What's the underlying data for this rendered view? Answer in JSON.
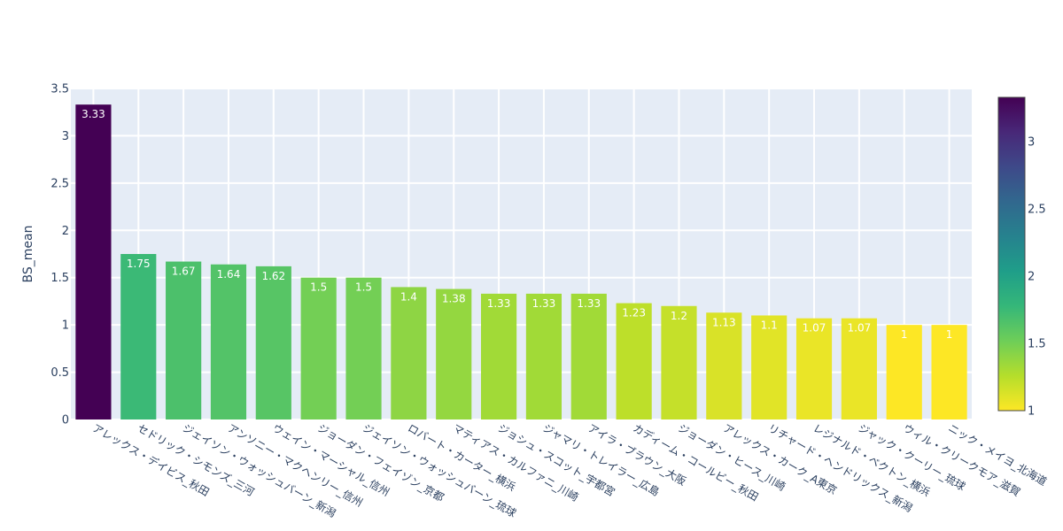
{
  "chart_data": {
    "type": "bar",
    "title": "",
    "xlabel": "",
    "ylabel": "BS_mean",
    "ylim": [
      0,
      3.5
    ],
    "yticks": [
      "0",
      "0.5",
      "1",
      "1.5",
      "2",
      "2.5",
      "3",
      "3.5"
    ],
    "colorscale": "Viridis (reversed)",
    "colorbar": {
      "range": [
        1,
        3.33
      ],
      "ticks": [
        "1",
        "1.5",
        "2",
        "2.5",
        "3"
      ]
    },
    "categories": [
      "アレックス・デイビス_秋田",
      "セドリック・シモンズ_三河",
      "ジェイソン・ウォッシュバーン_新潟",
      "アンソニー・マクヘンリー_信州",
      "ウェイン・マーシャル_信州",
      "ジョーダン・フェイゾン_京都",
      "ジェイソン・ウォッシュバーン_琉球",
      "ロバート・カーター_横浜",
      "マティアス・カルファニ_川崎",
      "ジョシュ・スコット_宇都宮",
      "ジャマリ・トレイラー_広島",
      "アイラ・ブラウン_大阪",
      "カディーム・コールビー_秋田",
      "ジョーダン・ヒース_川崎",
      "アレックス・カーク_A東京",
      "リチャード・ヘンドリックス_新潟",
      "レジナルド・ベクトン_横浜",
      "ジャック・クーリー_琉球",
      "ウィル・クリークモア_滋賀",
      "ニック・メイヨ_北海道"
    ],
    "values": [
      3.33,
      1.75,
      1.67,
      1.64,
      1.62,
      1.5,
      1.5,
      1.4,
      1.38,
      1.33,
      1.33,
      1.33,
      1.23,
      1.2,
      1.13,
      1.1,
      1.07,
      1.07,
      1,
      1
    ],
    "data_labels": [
      "3.33",
      "1.75",
      "1.67",
      "1.64",
      "1.62",
      "1.5",
      "1.5",
      "1.4",
      "1.38",
      "1.33",
      "1.33",
      "1.33",
      "1.23",
      "1.2",
      "1.13",
      "1.1",
      "1.07",
      "1.07",
      "1",
      "1"
    ]
  }
}
